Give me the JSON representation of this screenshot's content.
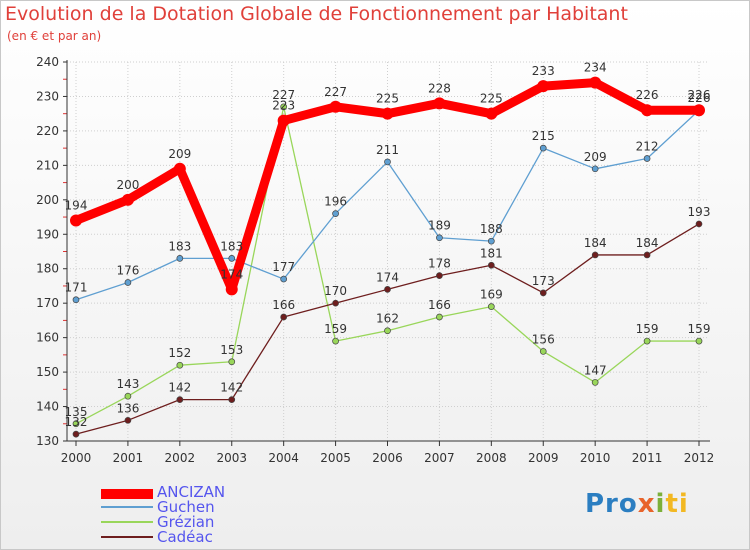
{
  "title": "Evolution de la Dotation Globale de Fonctionnement par Habitant",
  "subtitle": "(en € et par an)",
  "logo": [
    "Pro",
    "x",
    "i",
    "ti"
  ],
  "colors": {
    "title": "#e0403a",
    "axis": "#333333"
  },
  "chart_data": {
    "type": "line",
    "title": "Evolution de la Dotation Globale de Fonctionnement par Habitant",
    "ylabel": "(en € et par an)",
    "x": [
      "2000",
      "2001",
      "2002",
      "2003",
      "2004",
      "2005",
      "2006",
      "2007",
      "2008",
      "2009",
      "2010",
      "2011",
      "2012"
    ],
    "ylim": [
      130,
      240
    ],
    "yticks": [
      130,
      140,
      150,
      160,
      170,
      180,
      190,
      200,
      210,
      220,
      230,
      240
    ],
    "legend_position": "bottom-left",
    "series": [
      {
        "name": "ANCIZAN",
        "color": "#ff0000",
        "values": [
          194,
          200,
          209,
          174,
          223,
          227,
          225,
          228,
          225,
          233,
          234,
          226,
          226
        ]
      },
      {
        "name": "Guchen",
        "color": "#5f9fd1",
        "values": [
          171,
          176,
          183,
          183,
          177,
          196,
          211,
          189,
          188,
          215,
          209,
          212,
          226
        ]
      },
      {
        "name": "Grézian",
        "color": "#99d65a",
        "values": [
          135,
          143,
          152,
          153,
          227,
          159,
          162,
          166,
          169,
          156,
          147,
          159,
          159
        ]
      },
      {
        "name": "Cadéac",
        "color": "#6e1e1e",
        "values": [
          132,
          136,
          142,
          142,
          166,
          170,
          174,
          178,
          181,
          173,
          184,
          184,
          193
        ]
      }
    ]
  }
}
